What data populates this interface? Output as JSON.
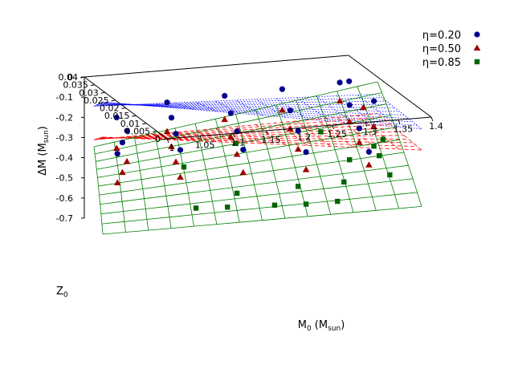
{
  "chart_data": {
    "type": "scatter3d",
    "title": "",
    "xlabel": "M",
    "xlabel_sub": "0",
    "xlabel_unit_pre": " (M",
    "xlabel_unit_sub": "sun",
    "xlabel_unit_post": ")",
    "ylabel": "Z",
    "ylabel_sub": "0",
    "zlabel": "ΔM (M",
    "zlabel_sub": "sun",
    "zlabel_post": ")",
    "xlim": [
      1.0,
      1.4
    ],
    "ylim": [
      0,
      0.04
    ],
    "zlim": [
      -0.8,
      0
    ],
    "x_ticks": [
      "1",
      "1.05",
      "1.1",
      "1.15",
      "1.2",
      "1.25",
      "1.3",
      "1.35",
      "1.4"
    ],
    "x_tick_values": [
      1.0,
      1.05,
      1.1,
      1.15,
      1.2,
      1.25,
      1.3,
      1.35,
      1.4
    ],
    "y_ticks": [
      "0",
      "0.005",
      "0.01",
      "0.015",
      "0.02",
      "0.025",
      "0.03",
      "0.035",
      "0.04"
    ],
    "y_tick_values": [
      0,
      0.005,
      0.01,
      0.015,
      0.02,
      0.025,
      0.03,
      0.035,
      0.04
    ],
    "z_ticks": [
      "0",
      "-0.1",
      "-0.2",
      "-0.3",
      "-0.4",
      "-0.5",
      "-0.6",
      "-0.7"
    ],
    "z_tick_values": [
      0,
      -0.1,
      -0.2,
      -0.3,
      -0.4,
      -0.5,
      -0.6,
      -0.7
    ],
    "legend_position": "top-right",
    "series": [
      {
        "name": "η=0.20",
        "color": "#00008b",
        "marker": "circle",
        "surface_color": "#0000ff",
        "surface_dash": "dotted",
        "surface": {
          "z0": -0.1,
          "zx": -0.03,
          "zy": -0.07,
          "zxy": -0.02,
          "zyy": 0.0
        },
        "points": [
          [
            1.02,
            0.005,
            -0.395
          ],
          [
            1.03,
            0.015,
            -0.345
          ],
          [
            1.04,
            0.025,
            -0.295
          ],
          [
            1.03,
            0.035,
            -0.235
          ],
          [
            1.1,
            0.005,
            -0.355
          ],
          [
            1.1,
            0.015,
            -0.29
          ],
          [
            1.1,
            0.025,
            -0.225
          ],
          [
            1.1,
            0.035,
            -0.165
          ],
          [
            1.18,
            0.005,
            -0.335
          ],
          [
            1.18,
            0.015,
            -0.27
          ],
          [
            1.18,
            0.025,
            -0.205
          ],
          [
            1.18,
            0.035,
            -0.145
          ],
          [
            1.26,
            0.005,
            -0.33
          ],
          [
            1.26,
            0.015,
            -0.26
          ],
          [
            1.26,
            0.025,
            -0.195
          ],
          [
            1.26,
            0.035,
            -0.125
          ],
          [
            1.34,
            0.005,
            -0.31
          ],
          [
            1.34,
            0.015,
            -0.24
          ],
          [
            1.34,
            0.025,
            -0.17
          ],
          [
            1.34,
            0.035,
            -0.105
          ],
          [
            1.38,
            0.03,
            -0.185
          ],
          [
            1.36,
            0.04,
            -0.135
          ]
        ]
      },
      {
        "name": "η=0.50",
        "color": "#a00000",
        "marker": "triangle",
        "surface_color": "#ff0000",
        "surface_dash": "dashed",
        "surface": {
          "z0": -0.3,
          "zx": 0.05,
          "zy": -0.06,
          "zxy": -0.02,
          "zyy": 0.0
        },
        "points": [
          [
            1.02,
            0.005,
            -0.56
          ],
          [
            1.03,
            0.015,
            -0.515
          ],
          [
            1.04,
            0.025,
            -0.47
          ],
          [
            1.03,
            0.035,
            -0.41
          ],
          [
            1.1,
            0.005,
            -0.51
          ],
          [
            1.1,
            0.015,
            -0.45
          ],
          [
            1.1,
            0.025,
            -0.39
          ],
          [
            1.1,
            0.035,
            -0.33
          ],
          [
            1.18,
            0.005,
            -0.465
          ],
          [
            1.18,
            0.015,
            -0.4
          ],
          [
            1.18,
            0.025,
            -0.34
          ],
          [
            1.18,
            0.035,
            -0.28
          ],
          [
            1.26,
            0.005,
            -0.43
          ],
          [
            1.26,
            0.015,
            -0.365
          ],
          [
            1.26,
            0.025,
            -0.3
          ],
          [
            1.26,
            0.035,
            -0.245
          ],
          [
            1.34,
            0.005,
            -0.385
          ],
          [
            1.34,
            0.015,
            -0.32
          ],
          [
            1.34,
            0.025,
            -0.265
          ],
          [
            1.34,
            0.035,
            -0.21
          ],
          [
            1.38,
            0.03,
            -0.33
          ],
          [
            1.38,
            0.04,
            -0.29
          ]
        ]
      },
      {
        "name": "η=0.85",
        "color": "#006400",
        "marker": "square",
        "surface_color": "#008000",
        "surface_dash": "solid",
        "surface": {
          "z0": -0.85,
          "zx": 0.28,
          "zy": 0.55,
          "zxy": -0.03,
          "zyy": -0.1
        },
        "points": [
          [
            1.12,
            0.005,
            -0.68
          ],
          [
            1.16,
            0.005,
            -0.665
          ],
          [
            1.18,
            0.015,
            -0.62
          ],
          [
            1.22,
            0.005,
            -0.64
          ],
          [
            1.26,
            0.005,
            -0.625
          ],
          [
            1.26,
            0.015,
            -0.575
          ],
          [
            1.3,
            0.005,
            -0.6
          ],
          [
            1.32,
            0.015,
            -0.545
          ],
          [
            1.34,
            0.025,
            -0.48
          ],
          [
            1.38,
            0.015,
            -0.5
          ],
          [
            1.38,
            0.025,
            -0.46
          ],
          [
            1.38,
            0.03,
            -0.44
          ],
          [
            1.2,
            0.04,
            -0.44
          ],
          [
            1.32,
            0.04,
            -0.41
          ],
          [
            1.4,
            0.035,
            -0.44
          ],
          [
            1.12,
            0.03,
            -0.52
          ]
        ]
      }
    ]
  }
}
